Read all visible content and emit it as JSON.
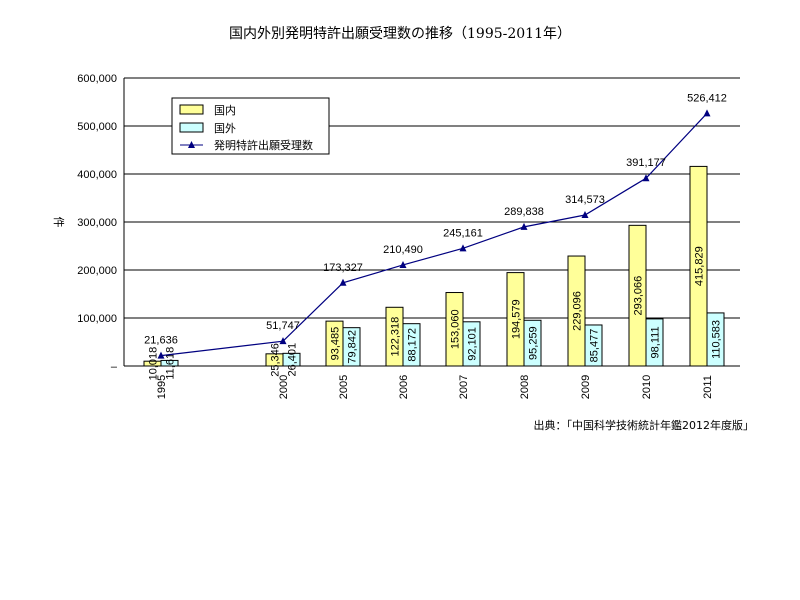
{
  "chart_data": {
    "type": "bar",
    "title": "国内外別発明特許出願受理数の推移（1995-2011年）",
    "ylabel": "件",
    "xlabel": "",
    "categories": [
      "1995",
      "2000",
      "2005",
      "2006",
      "2007",
      "2008",
      "2009",
      "2010",
      "2011"
    ],
    "ylim": [
      0,
      600000
    ],
    "y_ticks": [
      0,
      100000,
      200000,
      300000,
      400000,
      500000,
      600000
    ],
    "y_tick_labels": [
      "–",
      "100,000",
      "200,000",
      "300,000",
      "400,000",
      "500,000",
      "600,000"
    ],
    "grid": true,
    "legend_position": "top-left",
    "series": [
      {
        "name": "国内",
        "kind": "bar",
        "color": "#ffff99",
        "values": [
          10018,
          25346,
          93485,
          122318,
          153060,
          194579,
          229096,
          293066,
          415829
        ],
        "labels": [
          "10,018",
          "25,346",
          "93,485",
          "122,318",
          "153,060",
          "194,579",
          "229,096",
          "293,066",
          "415,829"
        ]
      },
      {
        "name": "国外",
        "kind": "bar",
        "color": "#ccffff",
        "values": [
          11618,
          26401,
          79842,
          88172,
          92101,
          95259,
          85477,
          98111,
          110583
        ],
        "labels": [
          "11,618",
          "26,401",
          "79,842",
          "88,172",
          "92,101",
          "95,259",
          "85,477",
          "98,111",
          "110,583"
        ]
      },
      {
        "name": "発明特許出願受理数",
        "kind": "line",
        "color": "#000080",
        "values": [
          21636,
          51747,
          173327,
          210490,
          245161,
          289838,
          314573,
          391177,
          526412
        ],
        "labels": [
          "21,636",
          "51,747",
          "173,327",
          "210,490",
          "245,161",
          "289,838",
          "314,573",
          "391,177",
          "526,412"
        ]
      }
    ],
    "source": "出典：｢中国科学技術統計年鑑2012年度版」"
  }
}
